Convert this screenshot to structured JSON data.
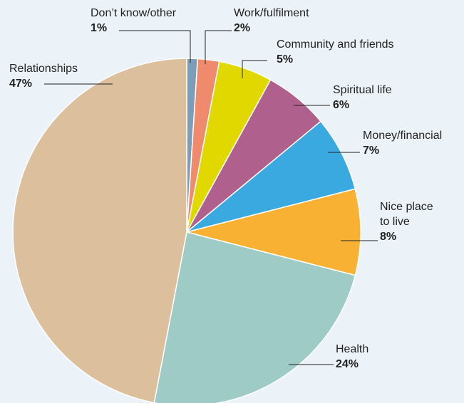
{
  "chart_data": {
    "type": "pie",
    "categories": [
      "Don’t know/other",
      "Work/fulfilment",
      "Community and friends",
      "Spiritual life",
      "Money/financial",
      "Nice place to live",
      "Health",
      "Relationships"
    ],
    "values": [
      1,
      2,
      5,
      6,
      7,
      8,
      24,
      47
    ],
    "value_labels": [
      "1%",
      "2%",
      "5%",
      "6%",
      "7%",
      "8%",
      "24%",
      "47%"
    ],
    "colors": [
      "#7b9db8",
      "#f08a6c",
      "#e1d800",
      "#b0608c",
      "#3aa9e0",
      "#f8b133",
      "#9ecbc6",
      "#dcc09e"
    ]
  }
}
